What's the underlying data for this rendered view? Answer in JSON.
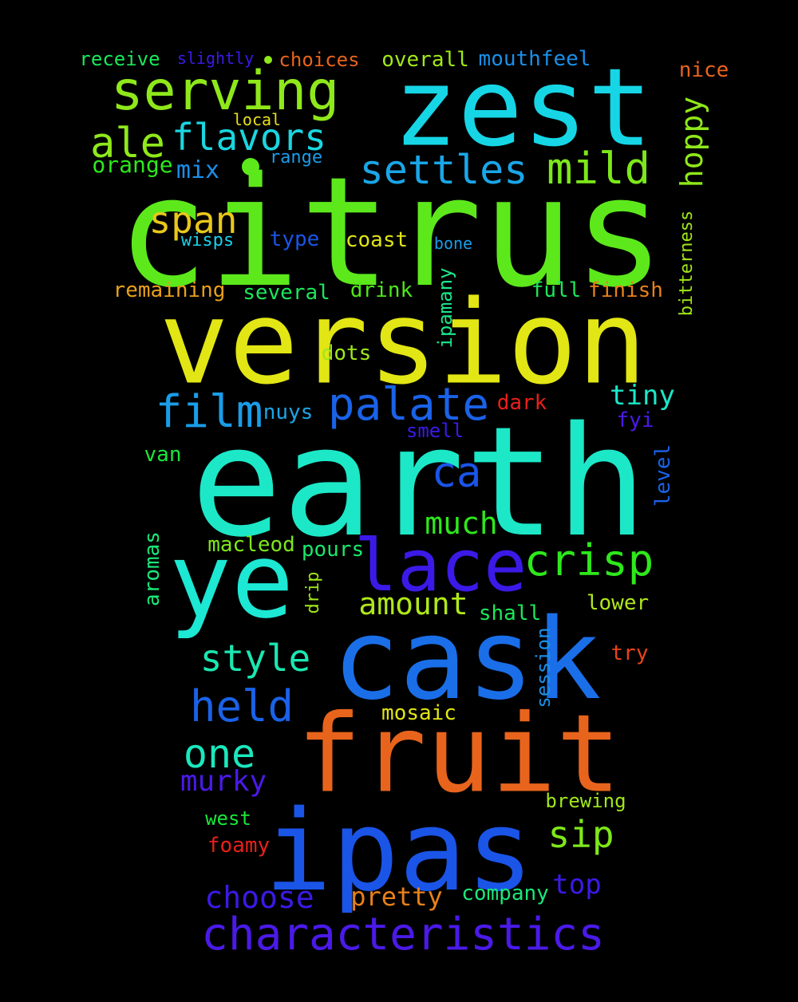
{
  "words": [
    {
      "text": "citrus",
      "color": "#5de81c"
    },
    {
      "text": "version",
      "color": "#e2e614"
    },
    {
      "text": "earth",
      "color": "#1ce8c8"
    },
    {
      "text": "zest",
      "color": "#16d6e6"
    },
    {
      "text": "cask",
      "color": "#1a6fe8"
    },
    {
      "text": "fruit",
      "color": "#e8641c"
    },
    {
      "text": "ipas",
      "color": "#1a55e8"
    },
    {
      "text": "ye",
      "color": "#1ce8d4"
    },
    {
      "text": "lace",
      "color": "#3b1ae8"
    },
    {
      "text": "serving",
      "color": "#8fe81a"
    },
    {
      "text": "characteristics",
      "color": "#4a1ae8"
    },
    {
      "text": "crisp",
      "color": "#2ee81c"
    },
    {
      "text": "palate",
      "color": "#1a62e8"
    },
    {
      "text": "film",
      "color": "#1a9de8"
    },
    {
      "text": "settles",
      "color": "#1aa6e8"
    },
    {
      "text": "mild",
      "color": "#7de81a"
    },
    {
      "text": "held",
      "color": "#1a62e8"
    },
    {
      "text": "ale",
      "color": "#8fe81a"
    },
    {
      "text": "flavors",
      "color": "#1ad6e0"
    },
    {
      "text": "one",
      "color": "#1ae8bd"
    },
    {
      "text": "style",
      "color": "#1ae8b0"
    },
    {
      "text": "span",
      "color": "#e8c81a"
    },
    {
      "text": "ca",
      "color": "#1a55e8"
    },
    {
      "text": "much",
      "color": "#2ee81c"
    },
    {
      "text": "amount",
      "color": "#b0e81a"
    },
    {
      "text": "sip",
      "color": "#7de81a"
    },
    {
      "text": "choose",
      "color": "#3b1ae8"
    },
    {
      "text": "murky",
      "color": "#4a1ae8"
    },
    {
      "text": "pretty",
      "color": "#e8801a"
    },
    {
      "text": "tiny",
      "color": "#1ae8c8"
    },
    {
      "text": "top",
      "color": "#3b1ae8"
    },
    {
      "text": "hoppy",
      "color": "#8fe81a"
    },
    {
      "text": "orange",
      "color": "#2ee81c"
    },
    {
      "text": "mix",
      "color": "#1a8fe8"
    },
    {
      "text": "receive",
      "color": "#1ae85a"
    },
    {
      "text": "slightly",
      "color": "#3b1ae8"
    },
    {
      "text": "choices",
      "color": "#e8641c"
    },
    {
      "text": "overall",
      "color": "#a0e81a"
    },
    {
      "text": "mouthfeel",
      "color": "#1a8fe8"
    },
    {
      "text": "nice",
      "color": "#e8641c"
    },
    {
      "text": "local",
      "color": "#e8e01a"
    },
    {
      "text": "range",
      "color": "#1a9de8"
    },
    {
      "text": "wisps",
      "color": "#1ad0e8"
    },
    {
      "text": "type",
      "color": "#1a55e8"
    },
    {
      "text": "coast",
      "color": "#e2e614"
    },
    {
      "text": "bone",
      "color": "#1a9de8"
    },
    {
      "text": "remaining",
      "color": "#e8a01a"
    },
    {
      "text": "several",
      "color": "#1ae85a"
    },
    {
      "text": "drink",
      "color": "#4de81a"
    },
    {
      "text": "full",
      "color": "#1ae85a"
    },
    {
      "text": "finish",
      "color": "#e8801a"
    },
    {
      "text": "bitterness",
      "color": "#a0e81a"
    },
    {
      "text": "ipamany",
      "color": "#1ae88a"
    },
    {
      "text": "dots",
      "color": "#a0e81a"
    },
    {
      "text": "dark",
      "color": "#e8201a"
    },
    {
      "text": "nuys",
      "color": "#1aa6e8"
    },
    {
      "text": "smell",
      "color": "#3b1ae8"
    },
    {
      "text": "fyi",
      "color": "#4a1ae8"
    },
    {
      "text": "van",
      "color": "#1ae83a"
    },
    {
      "text": "level",
      "color": "#1a62e8"
    },
    {
      "text": "aromas",
      "color": "#1ae87a"
    },
    {
      "text": "macleod",
      "color": "#7de81a"
    },
    {
      "text": "pours",
      "color": "#1ae86a"
    },
    {
      "text": "drip",
      "color": "#a0e81a"
    },
    {
      "text": "shall",
      "color": "#1ae85a"
    },
    {
      "text": "lower",
      "color": "#b0e81a"
    },
    {
      "text": "try",
      "color": "#e8441a"
    },
    {
      "text": "session",
      "color": "#1a8fe8"
    },
    {
      "text": "mosaic",
      "color": "#e2e614"
    },
    {
      "text": "brewing",
      "color": "#a0e81a"
    },
    {
      "text": "west",
      "color": "#1ae83a"
    },
    {
      "text": "foamy",
      "color": "#e8201a"
    },
    {
      "text": "company",
      "color": "#1ae87a"
    }
  ]
}
